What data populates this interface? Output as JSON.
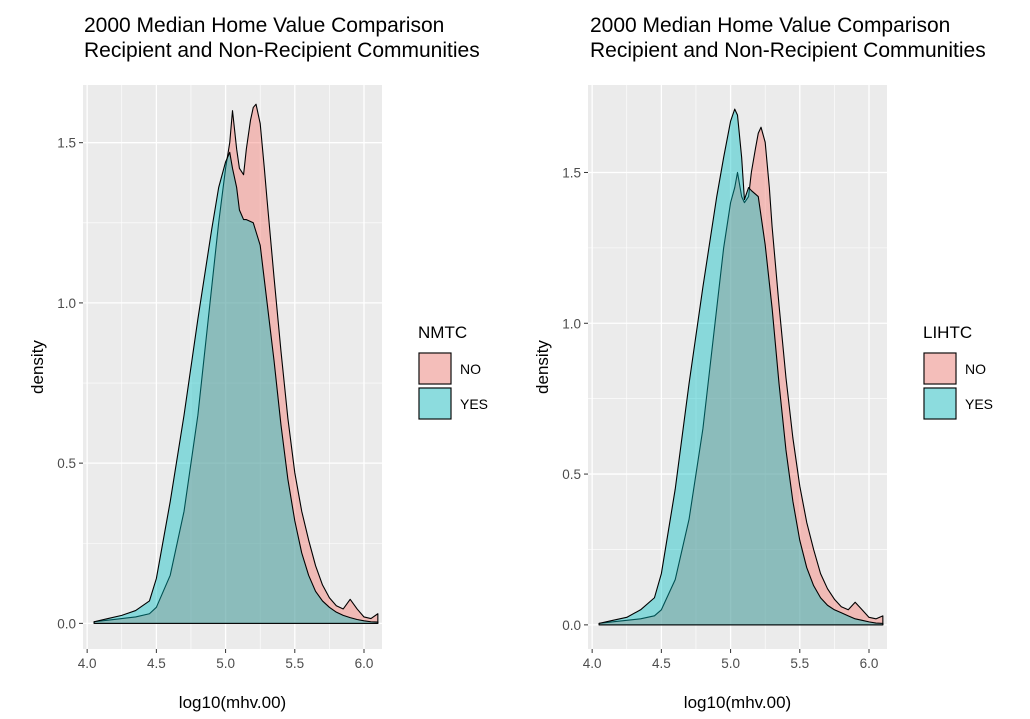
{
  "chart_data": [
    {
      "type": "area",
      "title": "2000 Median Home Value Comparison\nRecipient and Non-Recipient Communities",
      "xlabel": "log10(mhv.00)",
      "ylabel": "density",
      "xlim": [
        3.97,
        6.13
      ],
      "ylim": [
        -0.08,
        1.68
      ],
      "xticks": [
        4.0,
        4.5,
        5.0,
        5.5,
        6.0
      ],
      "xtick_labels": [
        "4.0",
        "4.5",
        "5.0",
        "5.5",
        "6.0"
      ],
      "yticks": [
        0.0,
        0.5,
        1.0,
        1.5
      ],
      "ytick_labels": [
        "0.0",
        "0.5",
        "1.0",
        "1.5"
      ],
      "grid": true,
      "legend_position": "right",
      "legend_title": "NMTC",
      "series": [
        {
          "name": "NO",
          "color": "#F8766D",
          "x": [
            4.05,
            4.15,
            4.25,
            4.35,
            4.45,
            4.5,
            4.6,
            4.7,
            4.8,
            4.9,
            4.95,
            5.0,
            5.03,
            5.05,
            5.08,
            5.1,
            5.13,
            5.15,
            5.18,
            5.2,
            5.22,
            5.25,
            5.28,
            5.3,
            5.35,
            5.4,
            5.45,
            5.5,
            5.55,
            5.6,
            5.65,
            5.7,
            5.75,
            5.8,
            5.85,
            5.9,
            5.95,
            6.0,
            6.05,
            6.1
          ],
          "y": [
            0.005,
            0.01,
            0.015,
            0.02,
            0.03,
            0.05,
            0.15,
            0.35,
            0.65,
            1.05,
            1.25,
            1.42,
            1.5,
            1.6,
            1.48,
            1.42,
            1.4,
            1.48,
            1.57,
            1.61,
            1.62,
            1.56,
            1.42,
            1.32,
            1.08,
            0.85,
            0.64,
            0.47,
            0.35,
            0.26,
            0.18,
            0.12,
            0.08,
            0.055,
            0.045,
            0.075,
            0.045,
            0.02,
            0.015,
            0.03
          ]
        },
        {
          "name": "YES",
          "color": "#00BFC4",
          "x": [
            4.05,
            4.15,
            4.25,
            4.35,
            4.45,
            4.5,
            4.6,
            4.7,
            4.8,
            4.9,
            4.95,
            5.0,
            5.03,
            5.05,
            5.08,
            5.1,
            5.13,
            5.15,
            5.2,
            5.25,
            5.3,
            5.35,
            5.4,
            5.45,
            5.5,
            5.55,
            5.6,
            5.65,
            5.7,
            5.75,
            5.8,
            5.85,
            5.9,
            5.95,
            6.0,
            6.05,
            6.1
          ],
          "y": [
            0.005,
            0.015,
            0.025,
            0.04,
            0.07,
            0.14,
            0.38,
            0.65,
            0.95,
            1.23,
            1.36,
            1.44,
            1.47,
            1.42,
            1.36,
            1.29,
            1.26,
            1.26,
            1.25,
            1.18,
            1.0,
            0.82,
            0.62,
            0.45,
            0.32,
            0.22,
            0.15,
            0.1,
            0.07,
            0.05,
            0.035,
            0.025,
            0.018,
            0.012,
            0.008,
            0.005,
            0.004
          ]
        }
      ]
    },
    {
      "type": "area",
      "title": "2000 Median Home Value Comparison\nRecipient and Non-Recipient Communities",
      "xlabel": "log10(mhv.00)",
      "ylabel": "density",
      "xlim": [
        3.97,
        6.13
      ],
      "ylim": [
        -0.08,
        1.79
      ],
      "xticks": [
        4.0,
        4.5,
        5.0,
        5.5,
        6.0
      ],
      "xtick_labels": [
        "4.0",
        "4.5",
        "5.0",
        "5.5",
        "6.0"
      ],
      "yticks": [
        0.0,
        0.5,
        1.0,
        1.5
      ],
      "ytick_labels": [
        "0.0",
        "0.5",
        "1.0",
        "1.5"
      ],
      "grid": true,
      "legend_position": "right",
      "legend_title": "LIHTC",
      "series": [
        {
          "name": "NO",
          "color": "#F8766D",
          "x": [
            4.05,
            4.15,
            4.25,
            4.35,
            4.45,
            4.5,
            4.6,
            4.7,
            4.8,
            4.9,
            4.95,
            5.0,
            5.03,
            5.05,
            5.08,
            5.1,
            5.13,
            5.15,
            5.18,
            5.2,
            5.22,
            5.25,
            5.28,
            5.3,
            5.35,
            5.4,
            5.45,
            5.5,
            5.55,
            5.6,
            5.65,
            5.7,
            5.75,
            5.8,
            5.85,
            5.9,
            5.95,
            6.0,
            6.05,
            6.1
          ],
          "y": [
            0.005,
            0.01,
            0.015,
            0.02,
            0.03,
            0.05,
            0.15,
            0.35,
            0.65,
            1.05,
            1.25,
            1.4,
            1.45,
            1.5,
            1.42,
            1.4,
            1.42,
            1.5,
            1.58,
            1.63,
            1.65,
            1.6,
            1.45,
            1.32,
            1.06,
            0.82,
            0.62,
            0.46,
            0.34,
            0.25,
            0.17,
            0.12,
            0.085,
            0.06,
            0.05,
            0.075,
            0.05,
            0.025,
            0.02,
            0.03
          ]
        },
        {
          "name": "YES",
          "color": "#00BFC4",
          "x": [
            4.05,
            4.15,
            4.25,
            4.35,
            4.45,
            4.5,
            4.6,
            4.7,
            4.8,
            4.9,
            4.95,
            5.0,
            5.03,
            5.05,
            5.08,
            5.1,
            5.13,
            5.15,
            5.2,
            5.25,
            5.3,
            5.35,
            5.4,
            5.45,
            5.5,
            5.55,
            5.6,
            5.65,
            5.7,
            5.75,
            5.8,
            5.85,
            5.9,
            5.95,
            6.0,
            6.05,
            6.1
          ],
          "y": [
            0.005,
            0.015,
            0.025,
            0.05,
            0.09,
            0.17,
            0.45,
            0.8,
            1.12,
            1.42,
            1.55,
            1.67,
            1.71,
            1.69,
            1.55,
            1.41,
            1.45,
            1.44,
            1.42,
            1.26,
            1.05,
            0.8,
            0.58,
            0.41,
            0.28,
            0.19,
            0.13,
            0.09,
            0.065,
            0.05,
            0.04,
            0.03,
            0.02,
            0.015,
            0.01,
            0.006,
            0.005
          ]
        }
      ]
    }
  ]
}
